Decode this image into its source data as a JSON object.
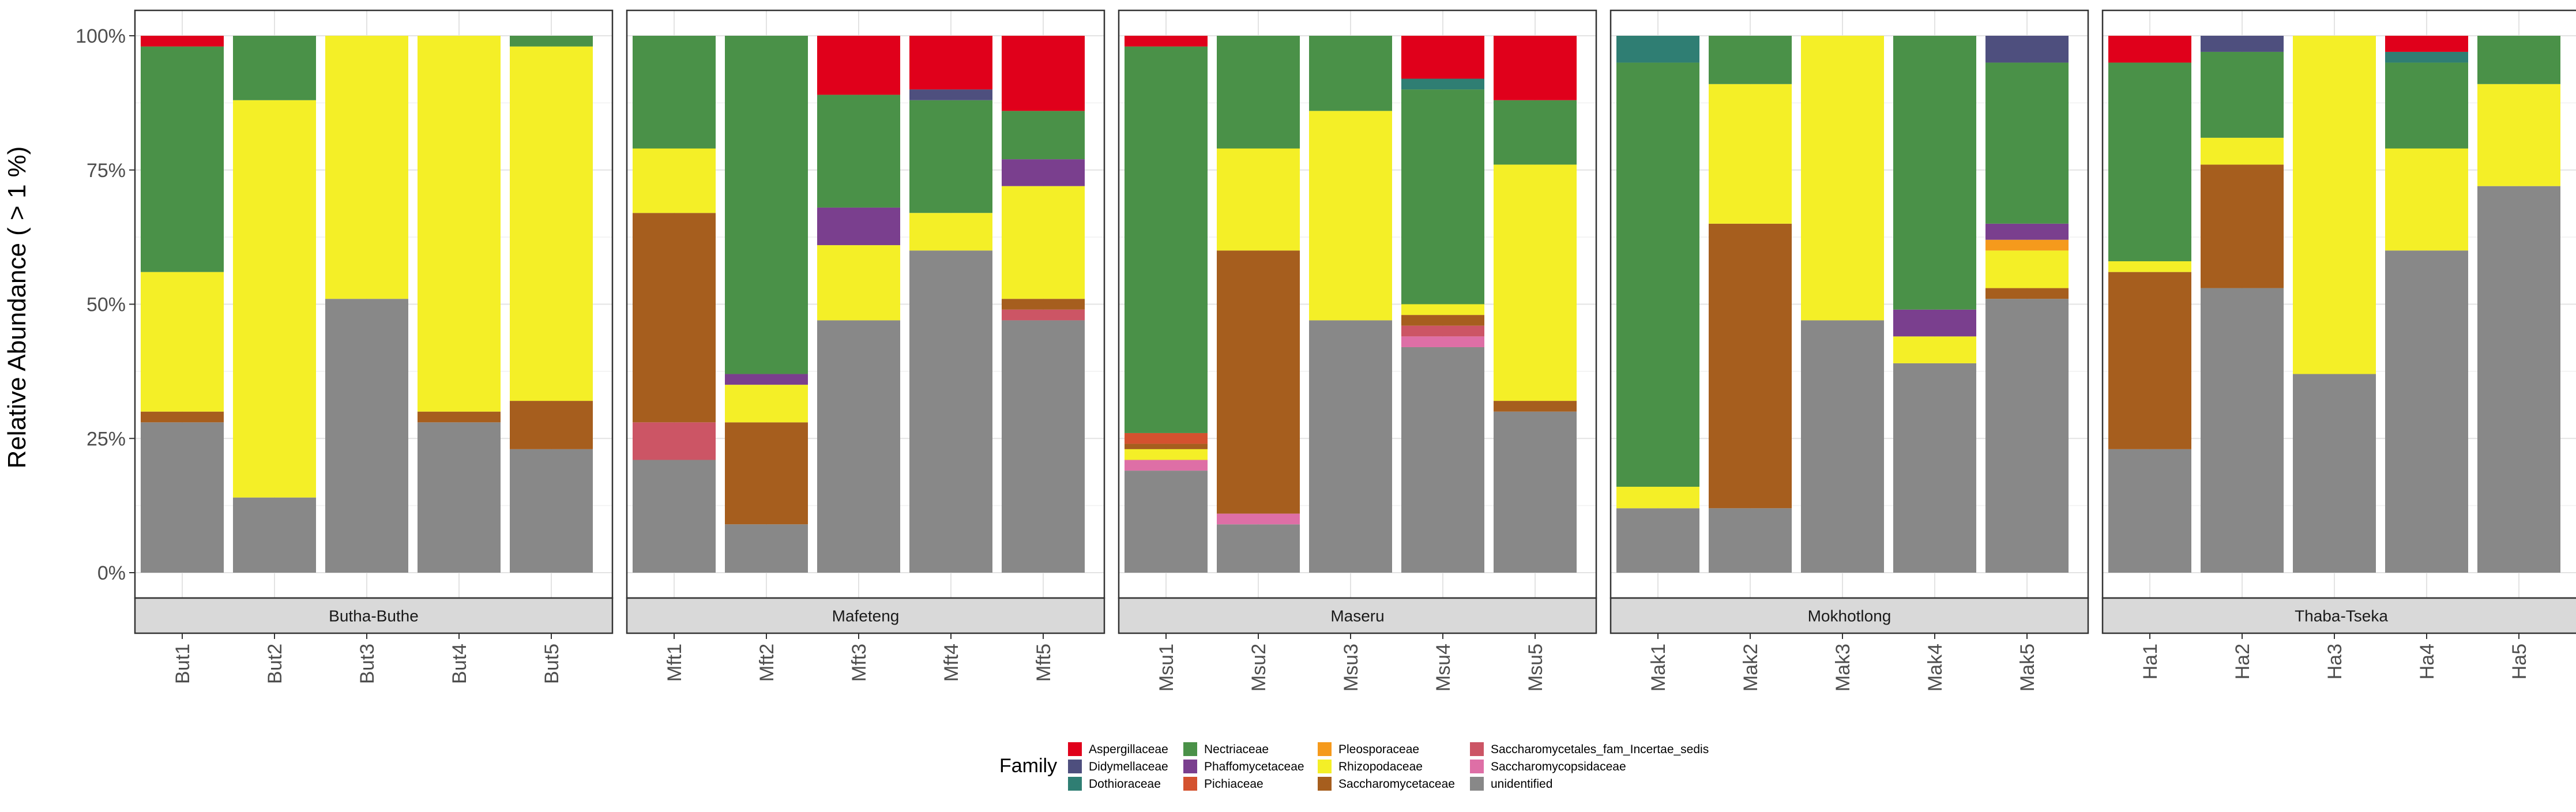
{
  "chart_data": {
    "type": "bar",
    "stacked": true,
    "ylabel": "Relative Abundance ( > 1 %)",
    "ylim": [
      0,
      1
    ],
    "yticks": [
      0,
      0.25,
      0.5,
      0.75,
      1
    ],
    "ytick_labels": [
      "0%",
      "25%",
      "50%",
      "75%",
      "100%"
    ],
    "grid": true,
    "legend": {
      "title": "Family",
      "position": "bottom",
      "entries": [
        {
          "name": "Aspergillaceae",
          "color": "#e0001b"
        },
        {
          "name": "Didymellaceae",
          "color": "#4e4f7e"
        },
        {
          "name": "Dothioraceae",
          "color": "#2f7e73"
        },
        {
          "name": "Nectriaceae",
          "color": "#4a9148"
        },
        {
          "name": "Phaffomycetaceae",
          "color": "#7a3f8e"
        },
        {
          "name": "Pichiaceae",
          "color": "#d4522f"
        },
        {
          "name": "Pleosporaceae",
          "color": "#f59a1c"
        },
        {
          "name": "Rhizopodaceae",
          "color": "#f4ef27"
        },
        {
          "name": "Saccharomycetaceae",
          "color": "#a65e1e"
        },
        {
          "name": "Saccharomycetales_fam_Incertae_sedis",
          "color": "#cc5565"
        },
        {
          "name": "Saccharomycopsidaceae",
          "color": "#de6fa6"
        },
        {
          "name": "unidentified",
          "color": "#888888"
        }
      ]
    },
    "panels": [
      {
        "name": "Butha-Buthe",
        "samples": [
          {
            "label": "But1",
            "stack": [
              [
                "unidentified",
                0.28
              ],
              [
                "Saccharomycetaceae",
                0.02
              ],
              [
                "Rhizopodaceae",
                0.26
              ],
              [
                "Nectriaceae",
                0.42
              ],
              [
                "Aspergillaceae",
                0.02
              ]
            ]
          },
          {
            "label": "But2",
            "stack": [
              [
                "unidentified",
                0.14
              ],
              [
                "Rhizopodaceae",
                0.74
              ],
              [
                "Nectriaceae",
                0.12
              ]
            ]
          },
          {
            "label": "But3",
            "stack": [
              [
                "unidentified",
                0.51
              ],
              [
                "Rhizopodaceae",
                0.49
              ]
            ]
          },
          {
            "label": "But4",
            "stack": [
              [
                "unidentified",
                0.28
              ],
              [
                "Saccharomycetaceae",
                0.02
              ],
              [
                "Rhizopodaceae",
                0.7
              ]
            ]
          },
          {
            "label": "But5",
            "stack": [
              [
                "unidentified",
                0.23
              ],
              [
                "Saccharomycetaceae",
                0.09
              ],
              [
                "Rhizopodaceae",
                0.66
              ],
              [
                "Nectriaceae",
                0.02
              ]
            ]
          }
        ]
      },
      {
        "name": "Mafeteng",
        "samples": [
          {
            "label": "Mft1",
            "stack": [
              [
                "unidentified",
                0.21
              ],
              [
                "Saccharomycetales_fam_Incertae_sedis",
                0.07
              ],
              [
                "Saccharomycetaceae",
                0.39
              ],
              [
                "Rhizopodaceae",
                0.12
              ],
              [
                "Nectriaceae",
                0.21
              ]
            ]
          },
          {
            "label": "Mft2",
            "stack": [
              [
                "unidentified",
                0.09
              ],
              [
                "Saccharomycetaceae",
                0.19
              ],
              [
                "Rhizopodaceae",
                0.07
              ],
              [
                "Phaffomycetaceae",
                0.02
              ],
              [
                "Nectriaceae",
                0.63
              ]
            ]
          },
          {
            "label": "Mft3",
            "stack": [
              [
                "unidentified",
                0.47
              ],
              [
                "Rhizopodaceae",
                0.14
              ],
              [
                "Phaffomycetaceae",
                0.07
              ],
              [
                "Nectriaceae",
                0.21
              ],
              [
                "Aspergillaceae",
                0.11
              ]
            ]
          },
          {
            "label": "Mft4",
            "stack": [
              [
                "unidentified",
                0.6
              ],
              [
                "Rhizopodaceae",
                0.07
              ],
              [
                "Nectriaceae",
                0.21
              ],
              [
                "Didymellaceae",
                0.02
              ],
              [
                "Aspergillaceae",
                0.1
              ]
            ]
          },
          {
            "label": "Mft5",
            "stack": [
              [
                "unidentified",
                0.47
              ],
              [
                "Saccharomycetales_fam_Incertae_sedis",
                0.02
              ],
              [
                "Saccharomycetaceae",
                0.02
              ],
              [
                "Rhizopodaceae",
                0.21
              ],
              [
                "Phaffomycetaceae",
                0.05
              ],
              [
                "Nectriaceae",
                0.09
              ],
              [
                "Aspergillaceae",
                0.14
              ]
            ]
          }
        ]
      },
      {
        "name": "Maseru",
        "samples": [
          {
            "label": "Msu1",
            "stack": [
              [
                "unidentified",
                0.19
              ],
              [
                "Saccharomycopsidaceae",
                0.02
              ],
              [
                "Rhizopodaceae",
                0.02
              ],
              [
                "Saccharomycetaceae",
                0.01
              ],
              [
                "Pichiaceae",
                0.02
              ],
              [
                "Nectriaceae",
                0.72
              ],
              [
                "Aspergillaceae",
                0.02
              ]
            ]
          },
          {
            "label": "Msu2",
            "stack": [
              [
                "unidentified",
                0.09
              ],
              [
                "Saccharomycopsidaceae",
                0.02
              ],
              [
                "Saccharomycetaceae",
                0.49
              ],
              [
                "Rhizopodaceae",
                0.19
              ],
              [
                "Nectriaceae",
                0.21
              ]
            ]
          },
          {
            "label": "Msu3",
            "stack": [
              [
                "unidentified",
                0.47
              ],
              [
                "Rhizopodaceae",
                0.39
              ],
              [
                "Nectriaceae",
                0.14
              ]
            ]
          },
          {
            "label": "Msu4",
            "stack": [
              [
                "unidentified",
                0.42
              ],
              [
                "Saccharomycopsidaceae",
                0.02
              ],
              [
                "Saccharomycetales_fam_Incertae_sedis",
                0.02
              ],
              [
                "Saccharomycetaceae",
                0.02
              ],
              [
                "Rhizopodaceae",
                0.02
              ],
              [
                "Nectriaceae",
                0.4
              ],
              [
                "Dothioraceae",
                0.02
              ],
              [
                "Aspergillaceae",
                0.08
              ]
            ]
          },
          {
            "label": "Msu5",
            "stack": [
              [
                "unidentified",
                0.3
              ],
              [
                "Saccharomycetaceae",
                0.02
              ],
              [
                "Rhizopodaceae",
                0.44
              ],
              [
                "Nectriaceae",
                0.12
              ],
              [
                "Aspergillaceae",
                0.12
              ]
            ]
          }
        ]
      },
      {
        "name": "Mokhotlong",
        "samples": [
          {
            "label": "Mak1",
            "stack": [
              [
                "unidentified",
                0.12
              ],
              [
                "Rhizopodaceae",
                0.04
              ],
              [
                "Nectriaceae",
                0.79
              ],
              [
                "Dothioraceae",
                0.05
              ]
            ]
          },
          {
            "label": "Mak2",
            "stack": [
              [
                "unidentified",
                0.12
              ],
              [
                "Saccharomycetaceae",
                0.53
              ],
              [
                "Rhizopodaceae",
                0.26
              ],
              [
                "Nectriaceae",
                0.09
              ]
            ]
          },
          {
            "label": "Mak3",
            "stack": [
              [
                "unidentified",
                0.47
              ],
              [
                "Rhizopodaceae",
                0.53
              ]
            ]
          },
          {
            "label": "Mak4",
            "stack": [
              [
                "unidentified",
                0.39
              ],
              [
                "Rhizopodaceae",
                0.05
              ],
              [
                "Phaffomycetaceae",
                0.05
              ],
              [
                "Nectriaceae",
                0.51
              ]
            ]
          },
          {
            "label": "Mak5",
            "stack": [
              [
                "unidentified",
                0.51
              ],
              [
                "Saccharomycetaceae",
                0.02
              ],
              [
                "Rhizopodaceae",
                0.07
              ],
              [
                "Pleosporaceae",
                0.02
              ],
              [
                "Phaffomycetaceae",
                0.03
              ],
              [
                "Nectriaceae",
                0.3
              ],
              [
                "Didymellaceae",
                0.05
              ]
            ]
          }
        ]
      },
      {
        "name": "Thaba-Tseka",
        "samples": [
          {
            "label": "Ha1",
            "stack": [
              [
                "unidentified",
                0.23
              ],
              [
                "Saccharomycetaceae",
                0.33
              ],
              [
                "Rhizopodaceae",
                0.02
              ],
              [
                "Nectriaceae",
                0.37
              ],
              [
                "Aspergillaceae",
                0.05
              ]
            ]
          },
          {
            "label": "Ha2",
            "stack": [
              [
                "unidentified",
                0.53
              ],
              [
                "Saccharomycetaceae",
                0.23
              ],
              [
                "Rhizopodaceae",
                0.05
              ],
              [
                "Nectriaceae",
                0.16
              ],
              [
                "Didymellaceae",
                0.03
              ]
            ]
          },
          {
            "label": "Ha3",
            "stack": [
              [
                "unidentified",
                0.37
              ],
              [
                "Rhizopodaceae",
                0.63
              ]
            ]
          },
          {
            "label": "Ha4",
            "stack": [
              [
                "unidentified",
                0.6
              ],
              [
                "Rhizopodaceae",
                0.19
              ],
              [
                "Nectriaceae",
                0.16
              ],
              [
                "Dothioraceae",
                0.02
              ],
              [
                "Aspergillaceae",
                0.03
              ]
            ]
          },
          {
            "label": "Ha5",
            "stack": [
              [
                "unidentified",
                0.72
              ],
              [
                "Rhizopodaceae",
                0.19
              ],
              [
                "Nectriaceae",
                0.09
              ]
            ]
          }
        ]
      }
    ]
  }
}
